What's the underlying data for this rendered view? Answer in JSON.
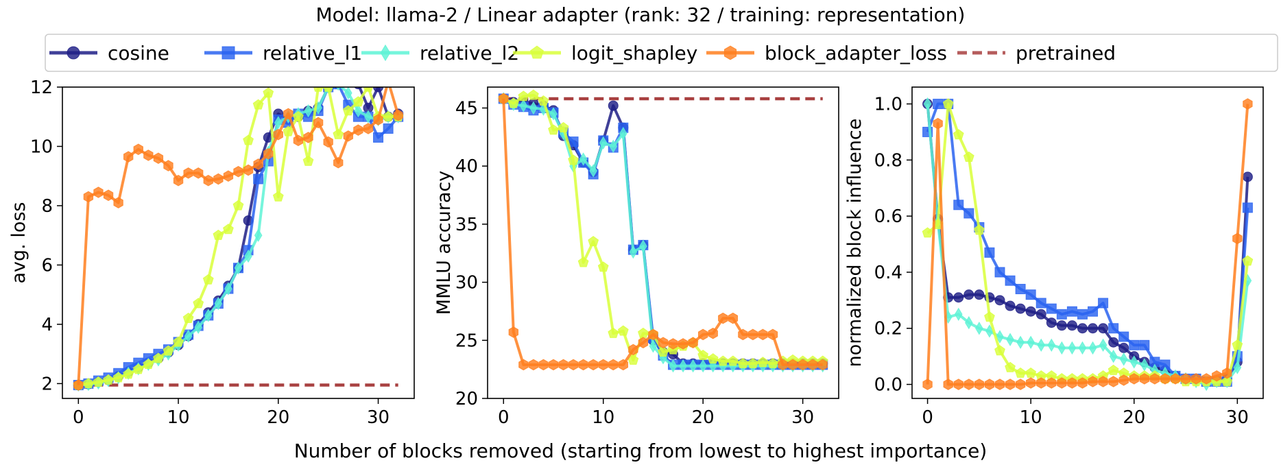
{
  "figure": {
    "title": "Model: llama-2 / Linear adapter (rank: 32 / training: representation)",
    "xlabel": "Number of blocks removed (starting from lowest to highest importance)"
  },
  "legend": [
    {
      "label": "cosine",
      "color": "#1f1f86",
      "marker": "circle",
      "dash": false
    },
    {
      "label": "relative_l1",
      "color": "#2a63f0",
      "marker": "square",
      "dash": false
    },
    {
      "label": "relative_l2",
      "color": "#5ef3d6",
      "marker": "diamond",
      "dash": false
    },
    {
      "label": "logit_shapley",
      "color": "#d9ff3a",
      "marker": "pentagon",
      "dash": false
    },
    {
      "label": "block_adapter_loss",
      "color": "#ff7f1f",
      "marker": "hexagon",
      "dash": false
    },
    {
      "label": "pretrained",
      "color": "#a84040",
      "marker": "none",
      "dash": true
    }
  ],
  "chart_data": [
    {
      "type": "line",
      "ylabel": "avg. loss",
      "xlim": [
        -1.6,
        33.6
      ],
      "ylim": [
        1.5,
        12
      ],
      "xticks": [
        0,
        10,
        20,
        30
      ],
      "yticks": [
        2,
        4,
        6,
        8,
        10,
        12
      ],
      "grid": false,
      "pretrained": 1.95,
      "series": [
        {
          "name": "cosine",
          "values": [
            1.95,
            1.98,
            2.05,
            2.12,
            2.25,
            2.4,
            2.55,
            2.7,
            2.85,
            3.05,
            3.3,
            3.6,
            4.0,
            4.4,
            4.8,
            5.3,
            5.9,
            7.5,
            9.3,
            10.3,
            11.1,
            10.9,
            11.0,
            11.2,
            11.3,
            12.0,
            12.1,
            12.2,
            12.1,
            11.3,
            12.0,
            11.0,
            11.1
          ]
        },
        {
          "name": "relative_l1",
          "values": [
            1.95,
            2.0,
            2.1,
            2.2,
            2.35,
            2.55,
            2.7,
            2.85,
            3.0,
            3.15,
            3.4,
            3.65,
            3.95,
            4.3,
            4.7,
            5.2,
            5.9,
            6.5,
            8.9,
            9.5,
            10.9,
            10.8,
            11.1,
            11.0,
            11.2,
            12.0,
            12.1,
            11.4,
            11.0,
            11.0,
            10.3,
            10.6,
            11.0
          ]
        },
        {
          "name": "relative_l2",
          "values": [
            1.95,
            1.97,
            2.02,
            2.1,
            2.2,
            2.35,
            2.5,
            2.65,
            2.8,
            3.0,
            3.3,
            3.6,
            3.9,
            4.3,
            4.7,
            5.2,
            5.9,
            6.3,
            7.0,
            9.8,
            10.8,
            11.0,
            11.1,
            11.2,
            11.3,
            12.0,
            12.1,
            11.8,
            11.2,
            11.0,
            10.9,
            11.0,
            11.0
          ]
        },
        {
          "name": "logit_shapley",
          "values": [
            1.95,
            2.0,
            2.05,
            2.12,
            2.2,
            2.32,
            2.48,
            2.65,
            2.85,
            3.1,
            3.4,
            4.2,
            4.7,
            5.5,
            7.0,
            7.2,
            8.0,
            10.2,
            11.4,
            11.8,
            8.3,
            10.5,
            11.0,
            9.5,
            12.0,
            12.0,
            10.4,
            11.2,
            11.5,
            12.0,
            11.0,
            11.0,
            11.0
          ]
        },
        {
          "name": "block_adapter_loss",
          "values": [
            1.95,
            8.3,
            8.45,
            8.35,
            8.1,
            9.65,
            9.9,
            9.7,
            9.6,
            9.35,
            8.85,
            9.1,
            9.1,
            8.85,
            8.9,
            9.0,
            9.15,
            9.2,
            9.4,
            9.75,
            10.4,
            11.1,
            10.2,
            10.3,
            10.8,
            10.15,
            9.45,
            10.35,
            10.55,
            10.6,
            10.9,
            12.2,
            11.05
          ]
        }
      ]
    },
    {
      "type": "line",
      "ylabel": "MMLU accuracy",
      "xlim": [
        -1.6,
        33.6
      ],
      "ylim": [
        20,
        46.8
      ],
      "xticks": [
        0,
        10,
        20,
        30
      ],
      "yticks": [
        20,
        25,
        30,
        35,
        40,
        45
      ],
      "grid": false,
      "pretrained": 45.8,
      "series": [
        {
          "name": "cosine",
          "values": [
            45.8,
            45.5,
            45.5,
            45.4,
            45.2,
            44.8,
            42.6,
            41.8,
            40.3,
            39.5,
            42.2,
            45.2,
            43.3,
            32.8,
            33.2,
            25.0,
            24.0,
            23.8,
            23.0,
            23.0,
            23.0,
            23.0,
            23.0,
            23.0,
            23.0,
            23.0,
            23.0,
            23.0,
            23.0,
            23.0,
            23.0,
            23.0,
            23.0
          ]
        },
        {
          "name": "relative_l1",
          "values": [
            45.8,
            45.3,
            45.1,
            44.8,
            45.0,
            44.6,
            42.9,
            42.1,
            40.3,
            39.3,
            42.2,
            41.6,
            43.3,
            32.8,
            33.2,
            25.2,
            23.7,
            22.9,
            22.9,
            22.9,
            22.9,
            22.9,
            22.9,
            22.9,
            22.9,
            22.9,
            22.9,
            22.9,
            22.9,
            22.9,
            22.9,
            22.9,
            22.9
          ]
        },
        {
          "name": "relative_l2",
          "values": [
            45.8,
            45.3,
            45.2,
            45.0,
            44.9,
            44.5,
            42.8,
            40.0,
            40.6,
            39.6,
            42.0,
            41.7,
            42.8,
            32.6,
            33.1,
            24.5,
            23.5,
            22.8,
            22.8,
            22.8,
            22.8,
            22.8,
            22.8,
            22.8,
            22.8,
            22.8,
            22.8,
            22.8,
            22.8,
            22.8,
            22.8,
            22.8,
            22.8
          ]
        },
        {
          "name": "logit_shapley",
          "values": [
            45.8,
            45.4,
            46.0,
            46.1,
            45.6,
            43.1,
            43.3,
            40.5,
            31.7,
            33.5,
            31.3,
            25.6,
            25.8,
            23.3,
            25.6,
            25.5,
            24.0,
            24.2,
            24.5,
            24.8,
            23.7,
            23.4,
            23.2,
            23.2,
            23.0,
            23.0,
            23.1,
            23.0,
            23.2,
            23.3,
            23.2,
            23.2,
            23.2
          ]
        },
        {
          "name": "block_adapter_loss",
          "values": [
            45.8,
            25.7,
            22.9,
            22.9,
            22.9,
            22.9,
            22.9,
            22.9,
            22.9,
            22.9,
            22.9,
            22.9,
            22.9,
            24.2,
            24.8,
            25.5,
            24.8,
            24.7,
            24.7,
            24.8,
            25.5,
            25.6,
            26.9,
            26.9,
            25.5,
            25.5,
            25.5,
            25.5,
            22.9,
            22.9,
            22.9,
            22.9,
            22.9
          ]
        }
      ]
    },
    {
      "type": "line",
      "ylabel": "normalized block influence",
      "xlim": [
        -1.5,
        32.5
      ],
      "ylim": [
        -0.05,
        1.06
      ],
      "xticks": [
        0,
        10,
        20,
        30
      ],
      "yticks": [
        0.0,
        0.2,
        0.4,
        0.6,
        0.8,
        1.0
      ],
      "ytick_labels": [
        "0.0",
        "0.2",
        "0.4",
        "0.6",
        "0.8",
        "1.0"
      ],
      "grid": false,
      "series": [
        {
          "name": "cosine",
          "values": [
            1.0,
            0.59,
            0.31,
            0.31,
            0.32,
            0.32,
            0.31,
            0.3,
            0.28,
            0.27,
            0.26,
            0.25,
            0.22,
            0.21,
            0.21,
            0.2,
            0.2,
            0.2,
            0.15,
            0.13,
            0.1,
            0.08,
            0.06,
            0.05,
            0.03,
            0.02,
            0.02,
            0.01,
            0.01,
            0.02,
            0.08,
            0.74
          ]
        },
        {
          "name": "relative_l1",
          "values": [
            0.9,
            1.0,
            1.0,
            0.64,
            0.61,
            0.56,
            0.47,
            0.4,
            0.37,
            0.34,
            0.32,
            0.29,
            0.27,
            0.25,
            0.26,
            0.25,
            0.26,
            0.29,
            0.2,
            0.17,
            0.14,
            0.14,
            0.08,
            0.07,
            0.03,
            0.02,
            0.02,
            0.01,
            0.01,
            0.01,
            0.1,
            0.63
          ]
        },
        {
          "name": "relative_l2",
          "values": [
            1.0,
            0.58,
            0.24,
            0.25,
            0.22,
            0.2,
            0.19,
            0.17,
            0.16,
            0.15,
            0.15,
            0.14,
            0.14,
            0.13,
            0.13,
            0.13,
            0.13,
            0.14,
            0.1,
            0.09,
            0.08,
            0.07,
            0.05,
            0.04,
            0.03,
            0.02,
            0.01,
            0.0,
            0.01,
            0.01,
            0.06,
            0.37
          ]
        },
        {
          "name": "logit_shapley",
          "values": [
            0.54,
            0.57,
            1.0,
            0.89,
            0.81,
            0.55,
            0.24,
            0.12,
            0.06,
            0.04,
            0.04,
            0.03,
            0.03,
            0.02,
            0.02,
            0.02,
            0.02,
            0.03,
            0.05,
            0.04,
            0.03,
            0.03,
            0.03,
            0.02,
            0.02,
            0.01,
            0.01,
            0.01,
            0.01,
            0.01,
            0.14,
            0.44
          ]
        },
        {
          "name": "block_adapter_loss",
          "values": [
            0.0,
            0.93,
            0.0,
            0.0,
            0.0,
            0.0,
            0.0,
            0.0,
            0.0,
            0.0,
            0.005,
            0.005,
            0.005,
            0.005,
            0.005,
            0.005,
            0.01,
            0.01,
            0.01,
            0.015,
            0.02,
            0.02,
            0.02,
            0.02,
            0.02,
            0.02,
            0.02,
            0.02,
            0.03,
            0.04,
            0.52,
            1.0
          ]
        }
      ]
    }
  ]
}
